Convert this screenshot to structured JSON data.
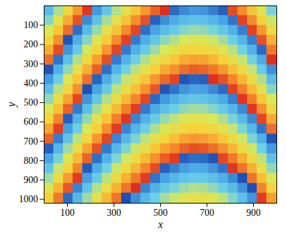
{
  "chart_data": {
    "type": "heatmap",
    "x_label": "x",
    "y_label": "y",
    "xlim": [
      0,
      1000
    ],
    "ylim": [
      0,
      1020
    ],
    "xticks": [
      100,
      300,
      500,
      700,
      900
    ],
    "yticks": [
      100,
      200,
      300,
      400,
      500,
      600,
      700,
      800,
      900,
      1000
    ],
    "zlim": [
      0,
      1
    ],
    "color": [
      "#1e4fb4",
      "#4aa8e6",
      "#6cd0e8",
      "#d8e858",
      "#f6d23a",
      "#f48a2c",
      "#e0281c"
    ],
    "cells": [
      [
        0.24,
        0.43,
        0.62,
        0.8,
        0.98,
        0.14,
        0.29,
        0.44,
        0.57,
        0.69,
        0.8,
        0.9,
        0.99,
        0.05,
        0.11,
        0.14,
        0.13,
        0.09,
        0.03,
        0.94,
        0.83,
        0.7,
        0.54,
        0.35
      ],
      [
        0.37,
        0.56,
        0.75,
        0.93,
        0.11,
        0.27,
        0.42,
        0.57,
        0.7,
        0.82,
        0.93,
        0.03,
        0.12,
        0.18,
        0.24,
        0.27,
        0.26,
        0.22,
        0.16,
        0.07,
        0.96,
        0.83,
        0.67,
        0.48
      ],
      [
        0.5,
        0.69,
        0.88,
        0.06,
        0.24,
        0.4,
        0.55,
        0.7,
        0.83,
        0.95,
        0.06,
        0.16,
        0.25,
        0.31,
        0.37,
        0.4,
        0.39,
        0.35,
        0.29,
        0.2,
        0.09,
        0.96,
        0.8,
        0.61
      ],
      [
        0.63,
        0.82,
        0.01,
        0.19,
        0.37,
        0.53,
        0.68,
        0.83,
        0.96,
        0.08,
        0.19,
        0.29,
        0.38,
        0.44,
        0.5,
        0.53,
        0.52,
        0.48,
        0.42,
        0.33,
        0.22,
        0.09,
        0.93,
        0.74
      ],
      [
        0.75,
        0.94,
        0.13,
        0.31,
        0.49,
        0.65,
        0.8,
        0.95,
        0.08,
        0.2,
        0.31,
        0.41,
        0.5,
        0.56,
        0.62,
        0.65,
        0.64,
        0.6,
        0.54,
        0.45,
        0.34,
        0.21,
        0.05,
        0.86
      ],
      [
        0.88,
        0.07,
        0.26,
        0.44,
        0.62,
        0.78,
        0.93,
        0.08,
        0.21,
        0.33,
        0.44,
        0.54,
        0.63,
        0.69,
        0.75,
        0.78,
        0.77,
        0.73,
        0.67,
        0.58,
        0.47,
        0.34,
        0.18,
        0.99
      ],
      [
        0.01,
        0.2,
        0.39,
        0.57,
        0.75,
        0.91,
        0.06,
        0.21,
        0.34,
        0.46,
        0.57,
        0.67,
        0.76,
        0.82,
        0.88,
        0.91,
        0.9,
        0.86,
        0.8,
        0.71,
        0.6,
        0.47,
        0.31,
        0.12
      ],
      [
        0.14,
        0.33,
        0.52,
        0.7,
        0.88,
        0.04,
        0.19,
        0.34,
        0.47,
        0.59,
        0.7,
        0.8,
        0.89,
        0.95,
        0.01,
        0.04,
        0.03,
        0.99,
        0.93,
        0.84,
        0.73,
        0.6,
        0.44,
        0.25
      ],
      [
        0.26,
        0.45,
        0.64,
        0.82,
        0.0,
        0.16,
        0.31,
        0.46,
        0.59,
        0.71,
        0.82,
        0.92,
        0.01,
        0.07,
        0.13,
        0.16,
        0.15,
        0.11,
        0.05,
        0.96,
        0.85,
        0.72,
        0.56,
        0.37
      ],
      [
        0.39,
        0.58,
        0.77,
        0.95,
        0.13,
        0.29,
        0.44,
        0.59,
        0.72,
        0.84,
        0.95,
        0.05,
        0.14,
        0.2,
        0.26,
        0.29,
        0.28,
        0.24,
        0.18,
        0.09,
        0.98,
        0.85,
        0.69,
        0.5
      ],
      [
        0.52,
        0.71,
        0.9,
        0.08,
        0.26,
        0.42,
        0.57,
        0.72,
        0.85,
        0.97,
        0.08,
        0.18,
        0.27,
        0.33,
        0.39,
        0.42,
        0.41,
        0.37,
        0.31,
        0.22,
        0.11,
        0.98,
        0.82,
        0.63
      ],
      [
        0.65,
        0.84,
        0.03,
        0.21,
        0.39,
        0.55,
        0.7,
        0.85,
        0.98,
        0.1,
        0.21,
        0.31,
        0.4,
        0.46,
        0.52,
        0.55,
        0.54,
        0.5,
        0.44,
        0.35,
        0.24,
        0.11,
        0.95,
        0.76
      ],
      [
        0.77,
        0.96,
        0.15,
        0.33,
        0.51,
        0.67,
        0.82,
        0.97,
        0.1,
        0.22,
        0.33,
        0.43,
        0.52,
        0.58,
        0.64,
        0.67,
        0.66,
        0.62,
        0.56,
        0.47,
        0.36,
        0.23,
        0.07,
        0.88
      ],
      [
        0.9,
        0.09,
        0.28,
        0.46,
        0.64,
        0.8,
        0.95,
        0.1,
        0.23,
        0.35,
        0.46,
        0.56,
        0.65,
        0.71,
        0.77,
        0.8,
        0.79,
        0.75,
        0.69,
        0.6,
        0.49,
        0.36,
        0.2,
        0.01
      ],
      [
        0.03,
        0.22,
        0.41,
        0.59,
        0.77,
        0.93,
        0.08,
        0.23,
        0.36,
        0.48,
        0.59,
        0.69,
        0.78,
        0.84,
        0.9,
        0.93,
        0.92,
        0.88,
        0.82,
        0.73,
        0.62,
        0.49,
        0.33,
        0.14
      ],
      [
        0.16,
        0.35,
        0.54,
        0.72,
        0.9,
        0.06,
        0.21,
        0.36,
        0.49,
        0.61,
        0.72,
        0.82,
        0.91,
        0.97,
        0.03,
        0.06,
        0.05,
        0.01,
        0.95,
        0.86,
        0.75,
        0.62,
        0.46,
        0.27
      ],
      [
        0.28,
        0.47,
        0.66,
        0.84,
        0.02,
        0.18,
        0.33,
        0.48,
        0.61,
        0.73,
        0.84,
        0.94,
        0.03,
        0.09,
        0.15,
        0.18,
        0.17,
        0.13,
        0.07,
        0.98,
        0.87,
        0.74,
        0.58,
        0.39
      ],
      [
        0.41,
        0.6,
        0.79,
        0.97,
        0.15,
        0.31,
        0.46,
        0.61,
        0.74,
        0.86,
        0.97,
        0.07,
        0.16,
        0.22,
        0.28,
        0.31,
        0.3,
        0.26,
        0.2,
        0.11,
        0.0,
        0.87,
        0.71,
        0.52
      ],
      [
        0.54,
        0.73,
        0.92,
        0.1,
        0.28,
        0.44,
        0.59,
        0.74,
        0.87,
        0.99,
        0.1,
        0.2,
        0.29,
        0.35,
        0.41,
        0.44,
        0.43,
        0.39,
        0.33,
        0.24,
        0.13,
        0.0,
        0.84,
        0.65
      ],
      [
        0.67,
        0.86,
        0.05,
        0.23,
        0.41,
        0.57,
        0.72,
        0.87,
        0.0,
        0.12,
        0.23,
        0.33,
        0.42,
        0.48,
        0.54,
        0.57,
        0.56,
        0.52,
        0.46,
        0.37,
        0.26,
        0.13,
        0.97,
        0.78
      ]
    ]
  }
}
